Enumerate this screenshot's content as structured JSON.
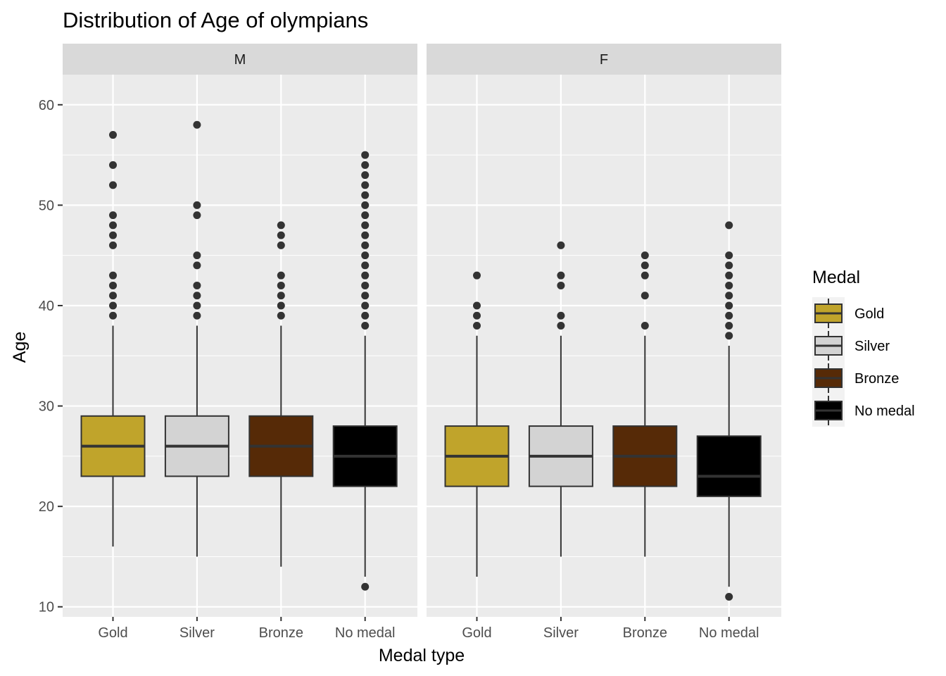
{
  "chart_data": {
    "type": "boxplot",
    "title": "Distribution of Age of olympians",
    "xlabel": "Medal type",
    "ylabel": "Age",
    "ylim": [
      9,
      63
    ],
    "yticks": [
      10,
      20,
      30,
      40,
      50,
      60
    ],
    "categories": [
      "Gold",
      "Silver",
      "Bronze",
      "No medal"
    ],
    "facets": [
      "M",
      "F"
    ],
    "legend": {
      "title": "Medal",
      "position": "right",
      "entries": [
        {
          "label": "Gold",
          "color": "#C0A42B"
        },
        {
          "label": "Silver",
          "color": "#D3D3D3"
        },
        {
          "label": "Bronze",
          "color": "#562A07"
        },
        {
          "label": "No medal",
          "color": "#000000"
        }
      ]
    },
    "colors": {
      "panel_background": "#EBEBEB",
      "strip_background": "#D9D9D9",
      "grid": "#FFFFFF",
      "box_outline": "#333333",
      "no_medal_median": "#333333"
    },
    "panels": [
      {
        "facet": "M",
        "boxes": [
          {
            "category": "Gold",
            "whisker_low": 16,
            "q1": 23,
            "median": 26,
            "q3": 29,
            "whisker_high": 38,
            "outliers": [
              39,
              40,
              41,
              42,
              43,
              46,
              47,
              48,
              49,
              52,
              54,
              57
            ]
          },
          {
            "category": "Silver",
            "whisker_low": 15,
            "q1": 23,
            "median": 26,
            "q3": 29,
            "whisker_high": 38,
            "outliers": [
              39,
              40,
              41,
              42,
              44,
              45,
              49,
              50,
              58
            ]
          },
          {
            "category": "Bronze",
            "whisker_low": 14,
            "q1": 23,
            "median": 26,
            "q3": 29,
            "whisker_high": 38,
            "outliers": [
              39,
              40,
              41,
              42,
              43,
              46,
              47,
              48
            ]
          },
          {
            "category": "No medal",
            "whisker_low": 13,
            "q1": 22,
            "median": 25,
            "q3": 28,
            "whisker_high": 37,
            "outliers": [
              12,
              38,
              39,
              40,
              41,
              42,
              43,
              44,
              45,
              46,
              47,
              48,
              49,
              50,
              51,
              52,
              53,
              54,
              55
            ]
          }
        ]
      },
      {
        "facet": "F",
        "boxes": [
          {
            "category": "Gold",
            "whisker_low": 13,
            "q1": 22,
            "median": 25,
            "q3": 28,
            "whisker_high": 37,
            "outliers": [
              38,
              39,
              40,
              43
            ]
          },
          {
            "category": "Silver",
            "whisker_low": 15,
            "q1": 22,
            "median": 25,
            "q3": 28,
            "whisker_high": 37,
            "outliers": [
              38,
              39,
              42,
              43,
              46
            ]
          },
          {
            "category": "Bronze",
            "whisker_low": 15,
            "q1": 22,
            "median": 25,
            "q3": 28,
            "whisker_high": 37,
            "outliers": [
              38,
              41,
              43,
              44,
              45
            ]
          },
          {
            "category": "No medal",
            "whisker_low": 12,
            "q1": 21,
            "median": 23,
            "q3": 27,
            "whisker_high": 36,
            "outliers": [
              11,
              37,
              38,
              39,
              40,
              41,
              42,
              43,
              44,
              45,
              48
            ]
          }
        ]
      }
    ]
  }
}
